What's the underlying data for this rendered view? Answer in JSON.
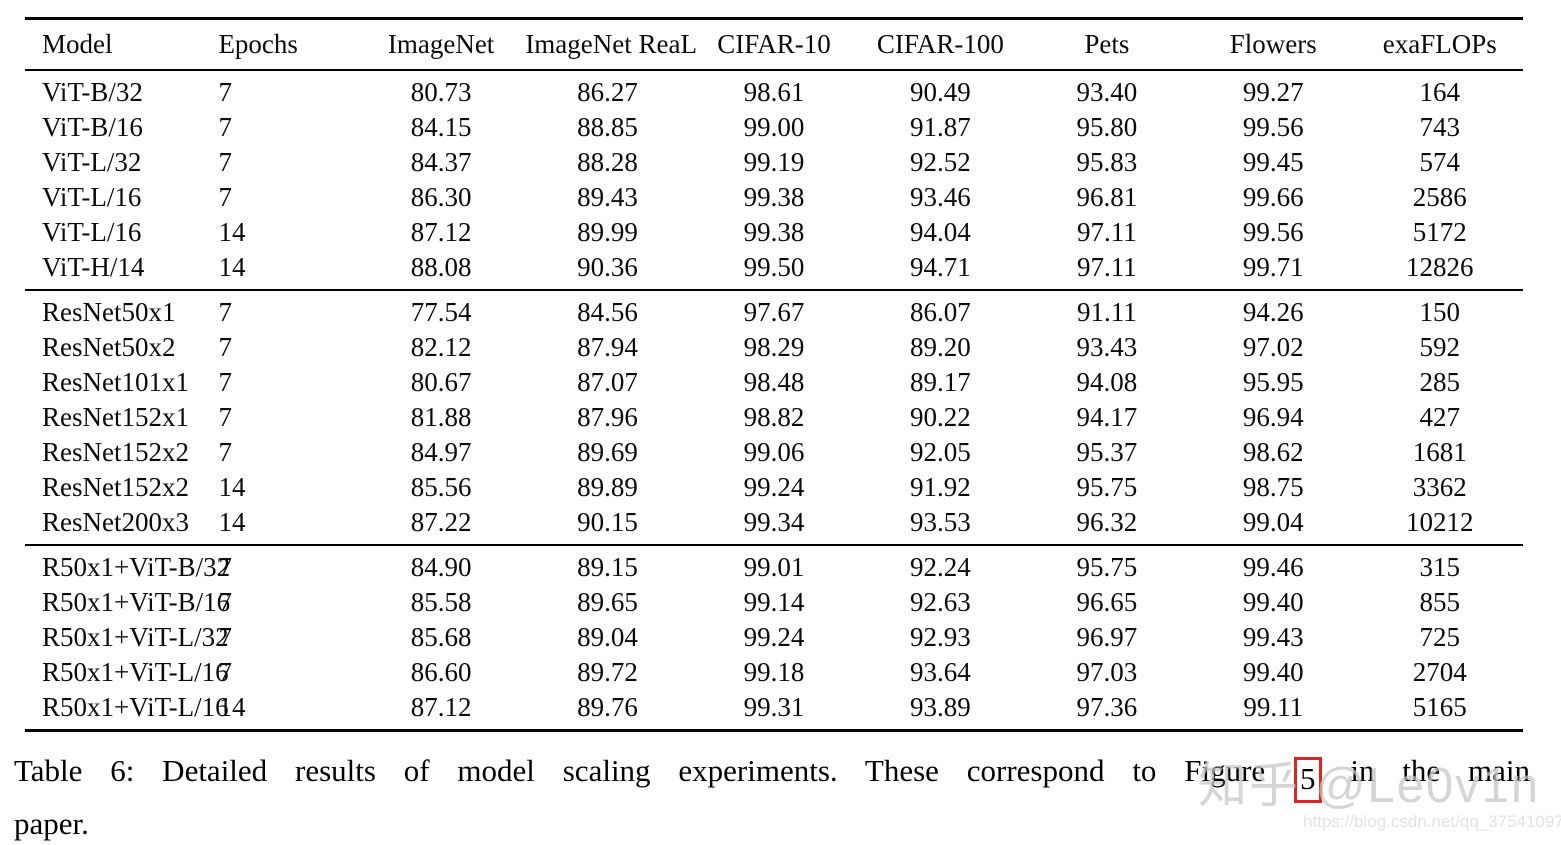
{
  "table": {
    "columns": [
      "Model",
      "Epochs",
      "ImageNet",
      "ImageNet ReaL",
      "CIFAR-10",
      "CIFAR-100",
      "Pets",
      "Flowers",
      "exaFLOPs"
    ],
    "groups": [
      {
        "name": "vit-models",
        "rows": [
          [
            "ViT-B/32",
            "7",
            "80.73",
            "86.27",
            "98.61",
            "90.49",
            "93.40",
            "99.27",
            "164"
          ],
          [
            "ViT-B/16",
            "7",
            "84.15",
            "88.85",
            "99.00",
            "91.87",
            "95.80",
            "99.56",
            "743"
          ],
          [
            "ViT-L/32",
            "7",
            "84.37",
            "88.28",
            "99.19",
            "92.52",
            "95.83",
            "99.45",
            "574"
          ],
          [
            "ViT-L/16",
            "7",
            "86.30",
            "89.43",
            "99.38",
            "93.46",
            "96.81",
            "99.66",
            "2586"
          ],
          [
            "ViT-L/16",
            "14",
            "87.12",
            "89.99",
            "99.38",
            "94.04",
            "97.11",
            "99.56",
            "5172"
          ],
          [
            "ViT-H/14",
            "14",
            "88.08",
            "90.36",
            "99.50",
            "94.71",
            "97.11",
            "99.71",
            "12826"
          ]
        ]
      },
      {
        "name": "resnet-models",
        "rows": [
          [
            "ResNet50x1",
            "7",
            "77.54",
            "84.56",
            "97.67",
            "86.07",
            "91.11",
            "94.26",
            "150"
          ],
          [
            "ResNet50x2",
            "7",
            "82.12",
            "87.94",
            "98.29",
            "89.20",
            "93.43",
            "97.02",
            "592"
          ],
          [
            "ResNet101x1",
            "7",
            "80.67",
            "87.07",
            "98.48",
            "89.17",
            "94.08",
            "95.95",
            "285"
          ],
          [
            "ResNet152x1",
            "7",
            "81.88",
            "87.96",
            "98.82",
            "90.22",
            "94.17",
            "96.94",
            "427"
          ],
          [
            "ResNet152x2",
            "7",
            "84.97",
            "89.69",
            "99.06",
            "92.05",
            "95.37",
            "98.62",
            "1681"
          ],
          [
            "ResNet152x2",
            "14",
            "85.56",
            "89.89",
            "99.24",
            "91.92",
            "95.75",
            "98.75",
            "3362"
          ],
          [
            "ResNet200x3",
            "14",
            "87.22",
            "90.15",
            "99.34",
            "93.53",
            "96.32",
            "99.04",
            "10212"
          ]
        ]
      },
      {
        "name": "hybrid-models",
        "rows": [
          [
            "R50x1+ViT-B/32",
            "7",
            "84.90",
            "89.15",
            "99.01",
            "92.24",
            "95.75",
            "99.46",
            "315"
          ],
          [
            "R50x1+ViT-B/16",
            "7",
            "85.58",
            "89.65",
            "99.14",
            "92.63",
            "96.65",
            "99.40",
            "855"
          ],
          [
            "R50x1+ViT-L/32",
            "7",
            "85.68",
            "89.04",
            "99.24",
            "92.93",
            "96.97",
            "99.43",
            "725"
          ],
          [
            "R50x1+ViT-L/16",
            "7",
            "86.60",
            "89.72",
            "99.18",
            "93.64",
            "97.03",
            "99.40",
            "2704"
          ],
          [
            "R50x1+ViT-L/16",
            "14",
            "87.12",
            "89.76",
            "99.31",
            "93.89",
            "97.36",
            "99.11",
            "5165"
          ]
        ]
      }
    ]
  },
  "caption": {
    "line1_prefix": "Table 6:  Detailed results of model scaling experiments.  These correspond to Figure ",
    "figure_ref": "5",
    "line1_suffix": " in the main",
    "line2": "paper."
  },
  "watermarks": {
    "zhihu": "知乎 @Le0v1n",
    "csdn_url": "https://blog.csdn.net/qq_37541097"
  },
  "colors": {
    "figure_ref_box": "#dd2420",
    "watermark_gray": "#c6c6c6",
    "url_gray": "#e3e3e3"
  }
}
